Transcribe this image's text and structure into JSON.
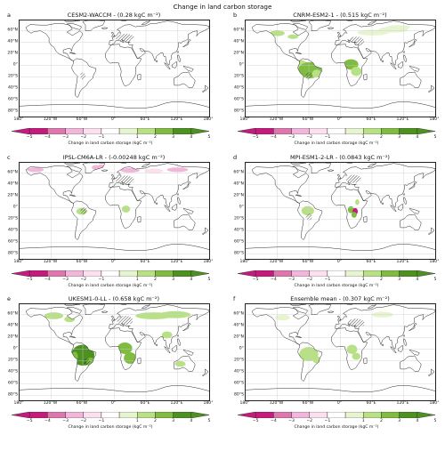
{
  "figure_title": "Change in land carbon storage",
  "panels": [
    {
      "letter": "a",
      "title": "CESM2-WACCM - (0.28 kgC m⁻²)"
    },
    {
      "letter": "b",
      "title": "CNRM-ESM2-1 - (0.515 kgC m⁻²)"
    },
    {
      "letter": "c",
      "title": "IPSL-CM6A-LR - (-0.00248 kgC m⁻²)"
    },
    {
      "letter": "d",
      "title": "MPI-ESM1-2-LR - (0.0843 kgC m⁻²)"
    },
    {
      "letter": "e",
      "title": "UKESM1-0-LL - (0.658 kgC m⁻²)"
    },
    {
      "letter": "f",
      "title": "Ensemble mean - (0.307 kgC m⁻²)"
    }
  ],
  "map": {
    "lat_ticks": [
      "60°N",
      "40°N",
      "20°N",
      "0°",
      "20°S",
      "40°S",
      "60°S",
      "80°S"
    ],
    "lon_ticks": [
      "180°",
      "120°W",
      "60°W",
      "0°",
      "60°E",
      "120°E",
      "180°"
    ]
  },
  "colorbar": {
    "label": "Change in land carbon storage (kgC m⁻²)",
    "ticks": [
      "−5",
      "−4",
      "−3",
      "−2",
      "−1",
      "1",
      "2",
      "3",
      "4",
      "5"
    ],
    "colors": [
      "#c51b7d",
      "#de77ae",
      "#f1b6da",
      "#fde0ef",
      "#ffffff",
      "#e6f5d0",
      "#b8e186",
      "#7fbc41",
      "#4d9221"
    ]
  }
}
